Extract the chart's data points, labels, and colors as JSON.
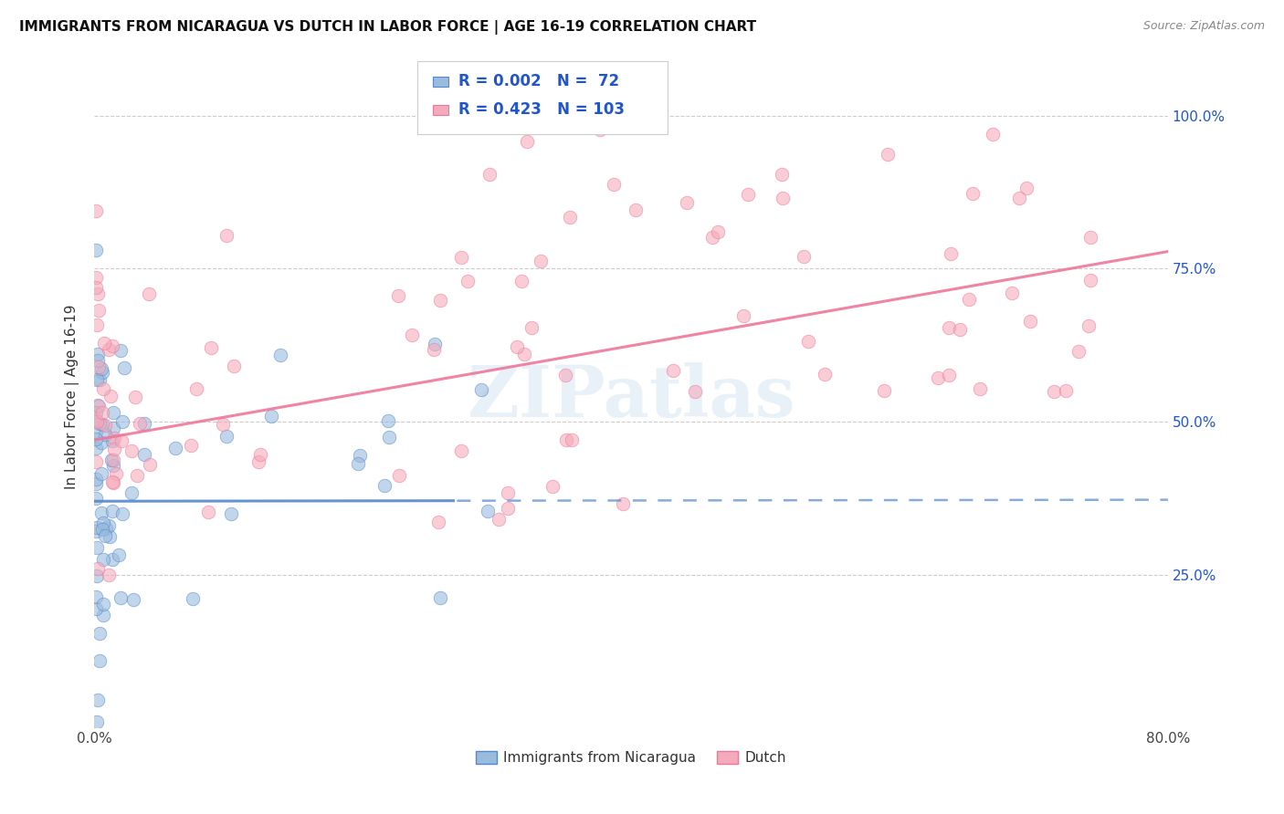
{
  "title": "IMMIGRANTS FROM NICARAGUA VS DUTCH IN LABOR FORCE | AGE 16-19 CORRELATION CHART",
  "source": "Source: ZipAtlas.com",
  "ylabel": "In Labor Force | Age 16-19",
  "y_ticks": [
    0.25,
    0.5,
    0.75,
    1.0
  ],
  "y_tick_labels": [
    "25.0%",
    "50.0%",
    "75.0%",
    "100.0%"
  ],
  "x_ticks": [
    0.0,
    0.1,
    0.2,
    0.3,
    0.4,
    0.5,
    0.6,
    0.7,
    0.8
  ],
  "x_tick_labels": [
    "0.0%",
    "",
    "",
    "",
    "",
    "",
    "",
    "",
    "80.0%"
  ],
  "series1_name": "Immigrants from Nicaragua",
  "series1_color": "#5588cc",
  "series1_color_fill": "#99bbdd",
  "series1_R": 0.002,
  "series1_N": 72,
  "series2_name": "Dutch",
  "series2_color": "#ee7799",
  "series2_color_fill": "#f5aabb",
  "series2_R": 0.423,
  "series2_N": 103,
  "legend_R_color": "#2255cc",
  "watermark": "ZIPatlas",
  "background_color": "#ffffff",
  "grid_color": "#cccccc",
  "trend1_y_intercept": 0.37,
  "trend1_slope": 0.003,
  "trend2_y_intercept": 0.47,
  "trend2_slope": 0.385
}
